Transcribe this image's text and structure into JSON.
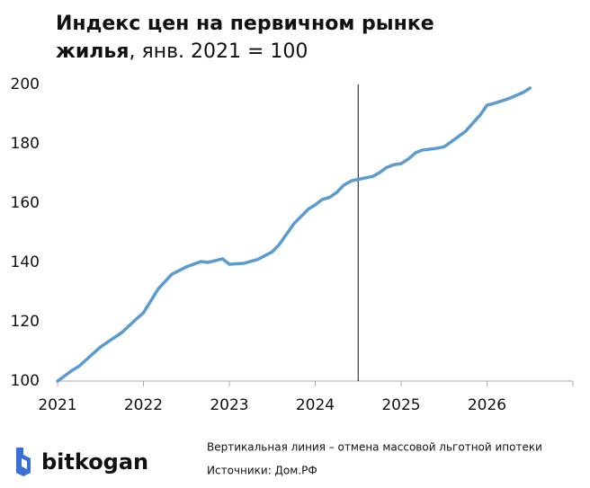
{
  "chart_data": {
    "type": "line",
    "title": "Индекс цен на первичном рынке жилья",
    "subtitle": ", янв. 2021 = 100",
    "x": [
      2021.0,
      2021.17,
      2021.25,
      2021.5,
      2021.75,
      2021.92,
      2022.0,
      2022.17,
      2022.33,
      2022.5,
      2022.67,
      2022.75,
      2022.92,
      2023.0,
      2023.17,
      2023.33,
      2023.5,
      2023.58,
      2023.75,
      2023.92,
      2024.0,
      2024.08,
      2024.17,
      2024.25,
      2024.33,
      2024.42,
      2024.5,
      2024.67,
      2024.75,
      2024.83,
      2024.92,
      2025.0,
      2025.08,
      2025.17,
      2025.25,
      2025.42,
      2025.5,
      2025.58,
      2025.75,
      2025.92,
      2026.0,
      2026.08,
      2026.25,
      2026.42,
      2026.5
    ],
    "series": [
      {
        "name": "Индекс",
        "color": "#5b9bd0",
        "values": [
          100,
          103.6,
          105,
          111.5,
          116.4,
          121,
          123,
          131,
          136,
          138.5,
          140.3,
          140,
          141.2,
          139.4,
          139.7,
          141,
          143.6,
          146,
          153,
          158,
          159.4,
          161.2,
          162,
          163.6,
          166,
          167.5,
          168,
          169,
          170.3,
          172,
          173,
          173.3,
          174.8,
          177,
          177.9,
          178.5,
          179,
          180.6,
          184.2,
          189.7,
          193,
          193.6,
          195.2,
          197.3,
          198.8
        ]
      }
    ],
    "xlim": [
      2021,
      2027
    ],
    "xticks": [
      2021,
      2022,
      2023,
      2024,
      2025,
      2026
    ],
    "ylim": [
      100,
      200
    ],
    "yticks": [
      100,
      120,
      140,
      160,
      180,
      200
    ],
    "vline": 2024.5,
    "annotation": "Вертикальная линия – отмена массовой льготной ипотеки",
    "source": "Источники: Дом.РФ",
    "brand": "bitkogan"
  }
}
